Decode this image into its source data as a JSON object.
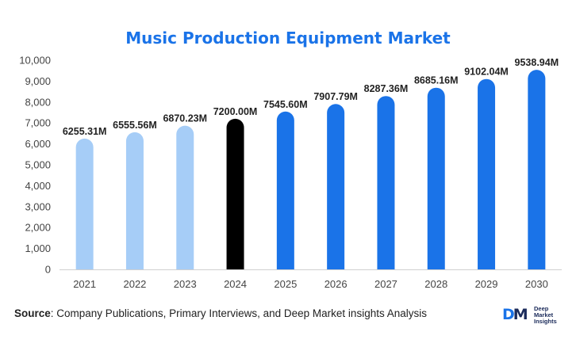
{
  "chart_data": {
    "type": "bar",
    "title": "Music Production Equipment Market",
    "categories": [
      "2021",
      "2022",
      "2023",
      "2024",
      "2025",
      "2026",
      "2027",
      "2028",
      "2029",
      "2030"
    ],
    "values": [
      6255.31,
      6555.56,
      6870.23,
      7200.0,
      7545.6,
      7907.79,
      8287.36,
      8685.16,
      9102.04,
      9538.94
    ],
    "labels": [
      "6255.31M",
      "6555.56M",
      "6870.23M",
      "7200.00M",
      "7545.60M",
      "7907.79M",
      "8287.36M",
      "8685.16M",
      "9102.04M",
      "9538.94M"
    ],
    "bar_colors": [
      "#a6cdf7",
      "#a6cdf7",
      "#a6cdf7",
      "#000000",
      "#1a73e8",
      "#1a73e8",
      "#1a73e8",
      "#1a73e8",
      "#1a73e8",
      "#1a73e8"
    ],
    "ylim": [
      0,
      10000
    ],
    "yticks": [
      0,
      1000,
      2000,
      3000,
      4000,
      5000,
      6000,
      7000,
      8000,
      9000,
      10000
    ],
    "ytick_labels": [
      "0",
      "1,000",
      "2,000",
      "3,000",
      "4,000",
      "5,000",
      "6,000",
      "7,000",
      "8,000",
      "9,000",
      "10,000"
    ],
    "xlabel": "",
    "ylabel": "",
    "grid": false,
    "legend": "none"
  },
  "footer": {
    "source_label": "Source",
    "source_text": ": Company Publications, Primary Interviews, and Deep Market insights Analysis"
  },
  "logo": {
    "mark_d": "D",
    "mark_m": "M",
    "line1": "Deep",
    "line2": "Market",
    "line3": "Insights"
  }
}
